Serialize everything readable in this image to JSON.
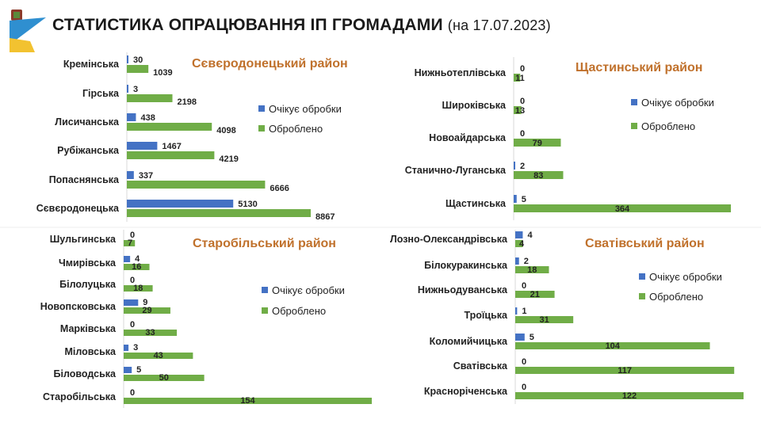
{
  "header": {
    "title": "СТАТИСТИКА ОПРАЦЮВАННЯ ІП ГРОМАДАМИ",
    "date": "(на 17.07.2023)"
  },
  "colors": {
    "pending": "#4472c4",
    "processed": "#70ad47",
    "district_title": "#c0712c"
  },
  "chart_data": [
    {
      "type": "bar",
      "orientation": "horizontal",
      "title": "Сєвєродонецький район",
      "legend": "right",
      "categories": [
        "Кремінська",
        "Гірська",
        "Лисичанська",
        "Рубіжанська",
        "Попаснянська",
        "Сєвєродонецька"
      ],
      "series": [
        {
          "name": "Очікує обробки",
          "values": [
            30,
            3,
            438,
            1467,
            337,
            5130
          ]
        },
        {
          "name": "Оброблено",
          "values": [
            1039,
            2198,
            4098,
            4219,
            6666,
            8867
          ]
        }
      ]
    },
    {
      "type": "bar",
      "orientation": "horizontal",
      "title": "Щастинський район",
      "legend": "right",
      "categories": [
        "Нижньотеплівська",
        "Широківська",
        "Новоайдарська",
        "Станично-Луганська",
        "Щастинська"
      ],
      "series": [
        {
          "name": "Очікує обробки",
          "values": [
            0,
            0,
            0,
            2,
            5
          ]
        },
        {
          "name": "Оброблено",
          "values": [
            11,
            13,
            79,
            83,
            364
          ]
        }
      ]
    },
    {
      "type": "bar",
      "orientation": "horizontal",
      "title": "Старобільський район",
      "legend": "right",
      "categories": [
        "Шульгинська",
        "Чмирівська",
        "Білолуцька",
        "Новопсковська",
        "Марківська",
        "Міловська",
        "Біловодська",
        "Старобільська"
      ],
      "series": [
        {
          "name": "Очікує обробки",
          "values": [
            0,
            4,
            0,
            9,
            0,
            3,
            5,
            0
          ]
        },
        {
          "name": "Оброблено",
          "values": [
            7,
            16,
            18,
            29,
            33,
            43,
            50,
            154
          ]
        }
      ]
    },
    {
      "type": "bar",
      "orientation": "horizontal",
      "title": "Сватівський район",
      "legend": "right",
      "categories": [
        "Лозно-Олександрівська",
        "Білокуракинська",
        "Нижньодуванська",
        "Троїцька",
        "Коломийчицька",
        "Сватівська",
        "Красноріченська"
      ],
      "series": [
        {
          "name": "Очікує обробки",
          "values": [
            4,
            2,
            0,
            1,
            5,
            0,
            0
          ]
        },
        {
          "name": "Оброблено",
          "values": [
            4,
            18,
            21,
            31,
            104,
            117,
            122
          ]
        }
      ]
    }
  ]
}
